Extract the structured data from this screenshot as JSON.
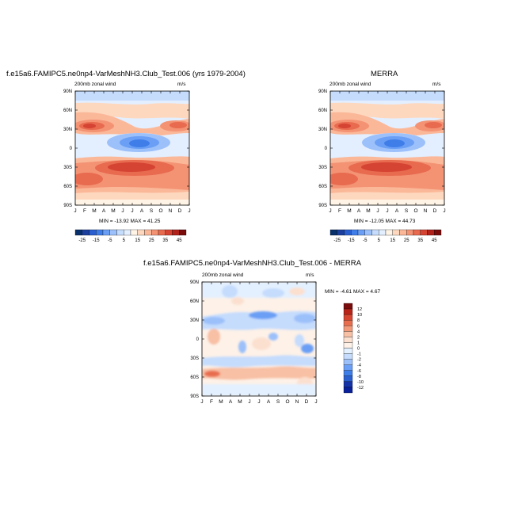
{
  "panel_top_left": {
    "title": "f.e15a6.FAMIPC5.ne0np4-VarMeshNH3.Club_Test.006 (yrs 1979-2004)",
    "subtitle_left": "200mb zonal wind",
    "subtitle_right": "m/s",
    "minmax": "MIN = -13.92 MAX = 41.25"
  },
  "panel_top_right": {
    "title": "MERRA",
    "subtitle_left": "200mb zonal wind",
    "subtitle_right": "m/s",
    "minmax": "MIN = -12.05 MAX = 44.73"
  },
  "panel_bottom": {
    "title": "f.e15a6.FAMIPC5.ne0np4-VarMeshNH3.Club_Test.006 - MERRA",
    "subtitle_left": "200mb zonal wind",
    "subtitle_right": "m/s",
    "minmax": "MIN = -4.61 MAX =  4.67"
  },
  "chart_data": [
    {
      "type": "heatmap",
      "title": "f.e15a6.FAMIPC5.ne0np4-VarMeshNH3.Club_Test.006 (yrs 1979-2004)",
      "x_ticks": [
        "J",
        "F",
        "M",
        "A",
        "M",
        "J",
        "J",
        "A",
        "S",
        "O",
        "N",
        "D",
        "J"
      ],
      "y_ticks": [
        "90N",
        "60N",
        "30N",
        "0",
        "30S",
        "60S",
        "90S"
      ],
      "colorbar_labels": [
        "-25",
        "-15",
        "-5",
        "5",
        "15",
        "25",
        "35",
        "45"
      ],
      "min": -13.92,
      "max": 41.25
    },
    {
      "type": "heatmap",
      "title": "MERRA",
      "x_ticks": [
        "J",
        "F",
        "M",
        "A",
        "M",
        "J",
        "J",
        "A",
        "S",
        "O",
        "N",
        "D",
        "J"
      ],
      "y_ticks": [
        "90N",
        "60N",
        "30N",
        "0",
        "30S",
        "60S",
        "90S"
      ],
      "colorbar_labels": [
        "-25",
        "-15",
        "-5",
        "5",
        "15",
        "25",
        "35",
        "45"
      ],
      "min": -12.05,
      "max": 44.73
    },
    {
      "type": "heatmap",
      "title": "f.e15a6.FAMIPC5.ne0np4-VarMeshNH3.Club_Test.006 - MERRA",
      "x_ticks": [
        "J",
        "F",
        "M",
        "A",
        "M",
        "J",
        "J",
        "A",
        "S",
        "O",
        "N",
        "D",
        "J"
      ],
      "y_ticks": [
        "90N",
        "60N",
        "30N",
        "0",
        "30S",
        "60S",
        "90S"
      ],
      "colorbar_labels": [
        "12",
        "10",
        "8",
        "6",
        "4",
        "2",
        "1",
        "0",
        "-1",
        "-2",
        "-4",
        "-6",
        "-8",
        "-10",
        "-12"
      ],
      "min": -4.61,
      "max": 4.67
    }
  ],
  "colors": {
    "main_scale": [
      "#08306b",
      "#1c3f9e",
      "#2a5fd0",
      "#3f7ee8",
      "#6a9ff5",
      "#9cc0fa",
      "#c5dcfd",
      "#e3efff",
      "#fff4e6",
      "#fdd8bf",
      "#fbb899",
      "#f39374",
      "#e86a4f",
      "#d54332",
      "#b0221a",
      "#7a0c0c"
    ],
    "diff_scale": [
      "#7a0c0c",
      "#b82418",
      "#d6452f",
      "#e86d4f",
      "#f39a7a",
      "#f8c0a4",
      "#fce0cf",
      "#fdf1e8",
      "#e3f0ff",
      "#c5dcfd",
      "#9cc0fa",
      "#6a9ff5",
      "#3f7ee8",
      "#2a5fd0",
      "#1433a8",
      "#08209a"
    ]
  }
}
